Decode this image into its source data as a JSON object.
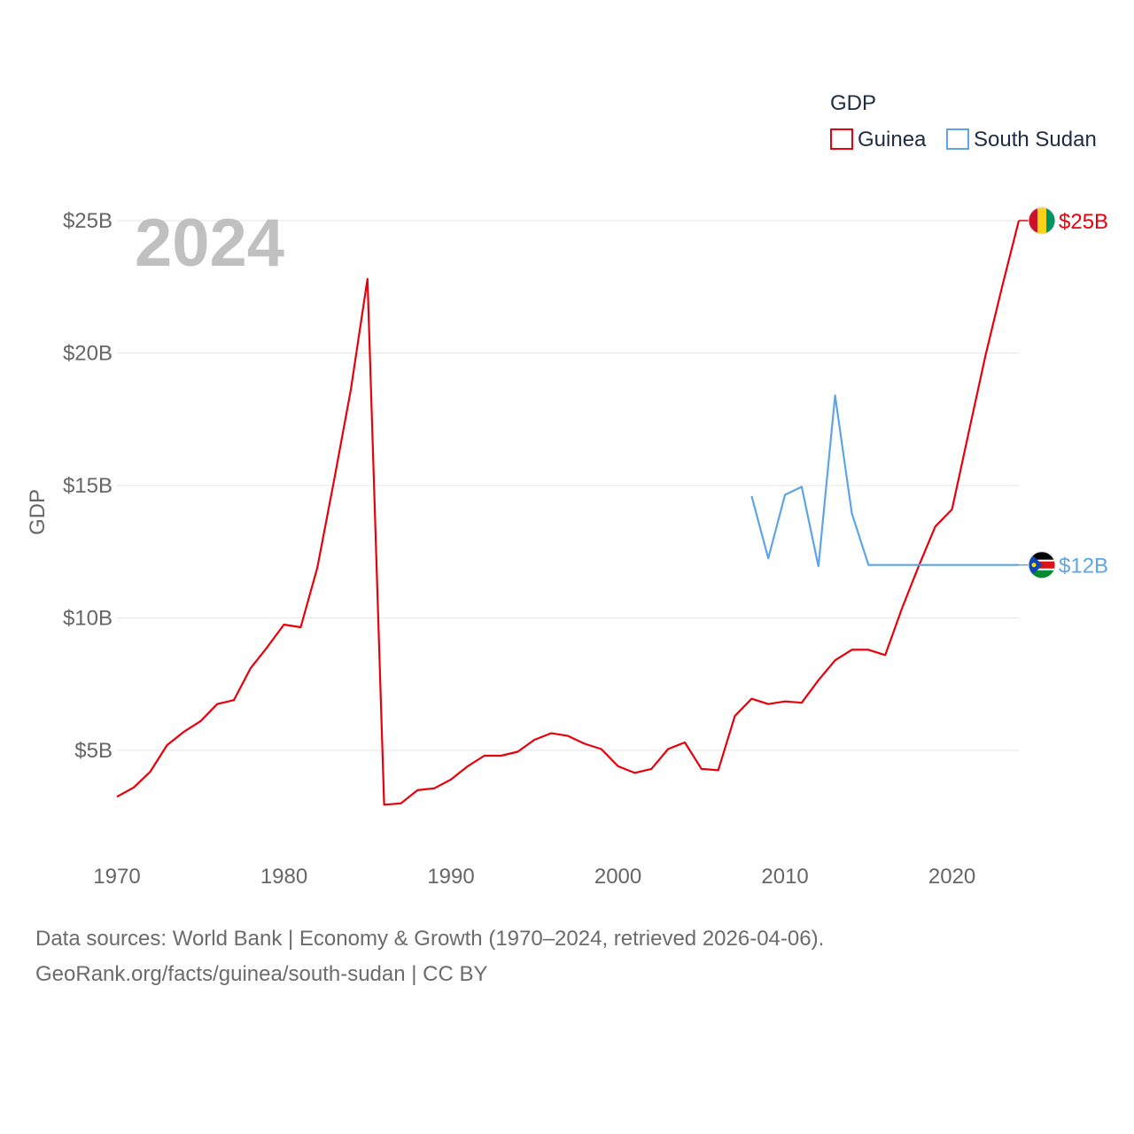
{
  "chart_data": {
    "type": "line",
    "legend_title": "GDP",
    "ylabel": "GDP",
    "year_label": "2024",
    "xlim": [
      1970,
      2024
    ],
    "ylim": [
      1.5,
      26
    ],
    "x_ticks": [
      1970,
      1980,
      1990,
      2000,
      2010,
      2020
    ],
    "y_ticks": [
      {
        "value": 5,
        "label": "$5B"
      },
      {
        "value": 10,
        "label": "$10B"
      },
      {
        "value": 15,
        "label": "$15B"
      },
      {
        "value": 20,
        "label": "$20B"
      },
      {
        "value": 25,
        "label": "$25B"
      }
    ],
    "series": [
      {
        "name": "Guinea",
        "color": "#e8000b",
        "end_label": "$25B",
        "flag_icon": "guinea-flag-icon",
        "points": [
          [
            1970,
            3.25
          ],
          [
            1971,
            3.6
          ],
          [
            1972,
            4.2
          ],
          [
            1973,
            5.2
          ],
          [
            1974,
            5.7
          ],
          [
            1975,
            6.1
          ],
          [
            1976,
            6.75
          ],
          [
            1977,
            6.9
          ],
          [
            1978,
            8.1
          ],
          [
            1979,
            8.9
          ],
          [
            1980,
            9.75
          ],
          [
            1981,
            9.65
          ],
          [
            1982,
            11.9
          ],
          [
            1983,
            15.2
          ],
          [
            1984,
            18.6
          ],
          [
            1985,
            22.8
          ],
          [
            1986,
            2.95
          ],
          [
            1987,
            3.0
          ],
          [
            1988,
            3.5
          ],
          [
            1989,
            3.57
          ],
          [
            1990,
            3.9
          ],
          [
            1991,
            4.4
          ],
          [
            1992,
            4.8
          ],
          [
            1993,
            4.8
          ],
          [
            1994,
            4.95
          ],
          [
            1995,
            5.4
          ],
          [
            1996,
            5.65
          ],
          [
            1997,
            5.55
          ],
          [
            1998,
            5.25
          ],
          [
            1999,
            5.05
          ],
          [
            2000,
            4.4
          ],
          [
            2001,
            4.15
          ],
          [
            2002,
            4.3
          ],
          [
            2003,
            5.05
          ],
          [
            2004,
            5.3
          ],
          [
            2005,
            4.3
          ],
          [
            2006,
            4.25
          ],
          [
            2007,
            6.3
          ],
          [
            2008,
            6.95
          ],
          [
            2009,
            6.75
          ],
          [
            2010,
            6.85
          ],
          [
            2011,
            6.8
          ],
          [
            2012,
            7.65
          ],
          [
            2013,
            8.4
          ],
          [
            2014,
            8.8
          ],
          [
            2015,
            8.8
          ],
          [
            2016,
            8.6
          ],
          [
            2017,
            10.35
          ],
          [
            2018,
            11.95
          ],
          [
            2019,
            13.45
          ],
          [
            2020,
            14.1
          ],
          [
            2021,
            17.0
          ],
          [
            2022,
            19.9
          ],
          [
            2023,
            22.5
          ],
          [
            2024,
            25.0
          ]
        ]
      },
      {
        "name": "South Sudan",
        "color": "#5da5e8",
        "end_label": "$12B",
        "flag_icon": "south-sudan-flag-icon",
        "points": [
          [
            2008,
            14.6
          ],
          [
            2009,
            12.25
          ],
          [
            2010,
            14.65
          ],
          [
            2011,
            14.95
          ],
          [
            2012,
            11.95
          ],
          [
            2013,
            18.4
          ],
          [
            2014,
            13.95
          ],
          [
            2015,
            12.0
          ],
          [
            2024,
            12.0
          ]
        ]
      }
    ]
  },
  "footer": {
    "source_line": "Data sources: World Bank | Economy & Growth (1970–2024, retrieved 2026-04-06).",
    "url_line": "GeoRank.org/facts/guinea/south-sudan | CC BY"
  }
}
